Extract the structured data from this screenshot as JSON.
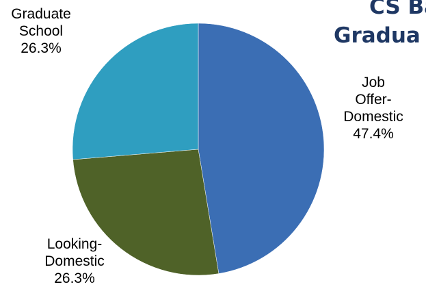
{
  "title": {
    "line1": "CS Ba",
    "line2": "Gradua"
  },
  "colors": {
    "title": "#1f3864",
    "slices": [
      "#3b6eb4",
      "#4f6228",
      "#2f9ec0"
    ]
  },
  "chart_data": {
    "type": "pie",
    "title": "",
    "slices": [
      {
        "label_lines": [
          "Job",
          "Offer-",
          "Domestic"
        ],
        "value": 47.4,
        "value_label": "47.4%"
      },
      {
        "label_lines": [
          "Looking-",
          "Domestic"
        ],
        "value": 26.3,
        "value_label": "26.3%"
      },
      {
        "label_lines": [
          "Graduate",
          "School"
        ],
        "value": 26.3,
        "value_label": "26.3%"
      }
    ],
    "start_angle_deg": 0,
    "direction": "clockwise"
  }
}
